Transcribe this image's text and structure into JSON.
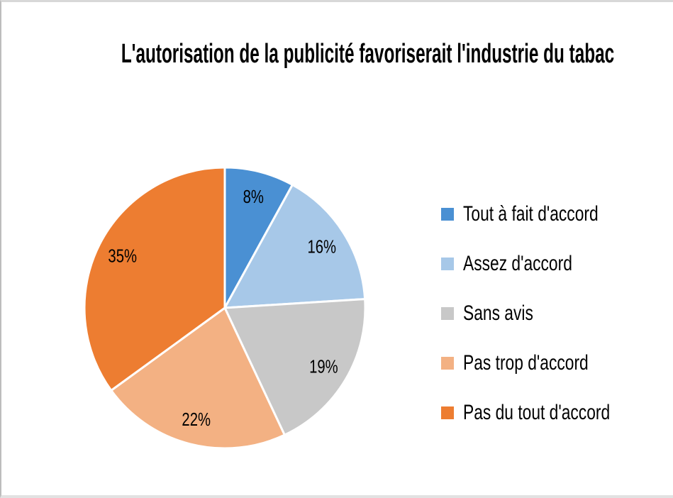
{
  "window": {
    "background": "#FFFFFF",
    "border_top_color": "#D8D8D8",
    "border_left_color": "#BDBDBD",
    "border_bottom_color": "#E2E2E2"
  },
  "chart_data": {
    "type": "pie",
    "title": "L'autorisation de la publicité favoriserait l'industrie du tabac",
    "unit": "%",
    "slices": [
      {
        "label": "Tout à fait d'accord",
        "value": 8,
        "display": "8%",
        "color": "#4A90D3"
      },
      {
        "label": "Assez d'accord",
        "value": 16,
        "display": "16%",
        "color": "#A7C8E8"
      },
      {
        "label": "Sans avis",
        "value": 19,
        "display": "19%",
        "color": "#C8C8C8"
      },
      {
        "label": "Pas trop d'accord",
        "value": 22,
        "display": "22%",
        "color": "#F3B183"
      },
      {
        "label": "Pas du tout d'accord",
        "value": 35,
        "display": "35%",
        "color": "#ED7D31"
      }
    ],
    "start_angle_deg": 0,
    "direction": "clockwise",
    "labels_position": "inside",
    "label_color": "#000000",
    "separator_color": "#FFFFFF",
    "legend_position": "right",
    "grid": false
  }
}
